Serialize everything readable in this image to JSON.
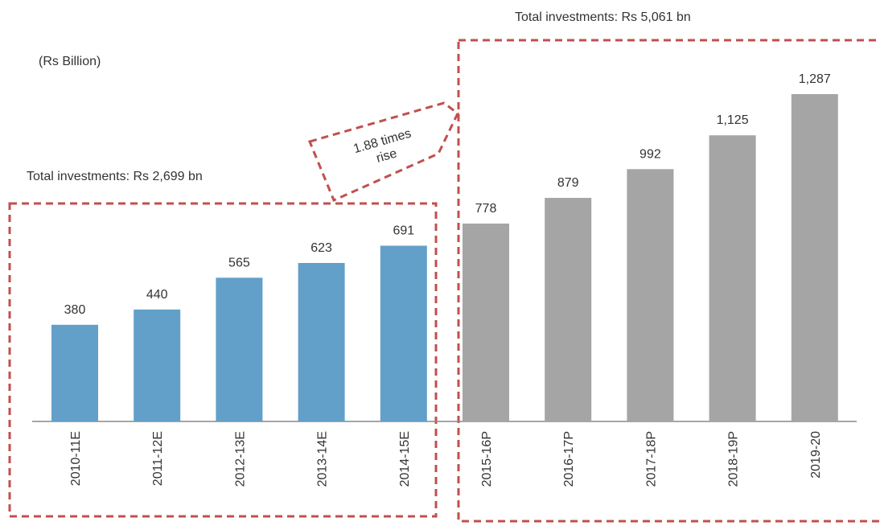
{
  "chart_data": {
    "type": "bar",
    "unit_label": "(Rs Billion)",
    "annotations": [
      "Total investments: Rs 2,699 bn",
      "Total investments: Rs 5,061 bn"
    ],
    "rise_label": [
      "1.88 times",
      "rise"
    ],
    "categories": [
      "2010-11E",
      "2011-12E",
      "2012-13E",
      "2013-14E",
      "2014-15E",
      "2015-16P",
      "2016-17P",
      "2017-18P",
      "2018-19P",
      "2019-20"
    ],
    "values": [
      380,
      440,
      565,
      623,
      691,
      778,
      879,
      992,
      1125,
      1287
    ],
    "value_labels": [
      "380",
      "440",
      "565",
      "623",
      "691",
      "778",
      "879",
      "992",
      "1,125",
      "1,287"
    ],
    "colors": [
      "#62a0c9",
      "#62a0c9",
      "#62a0c9",
      "#62a0c9",
      "#62a0c9",
      "#a5a5a5",
      "#a5a5a5",
      "#a5a5a5",
      "#a5a5a5",
      "#a5a5a5"
    ]
  }
}
